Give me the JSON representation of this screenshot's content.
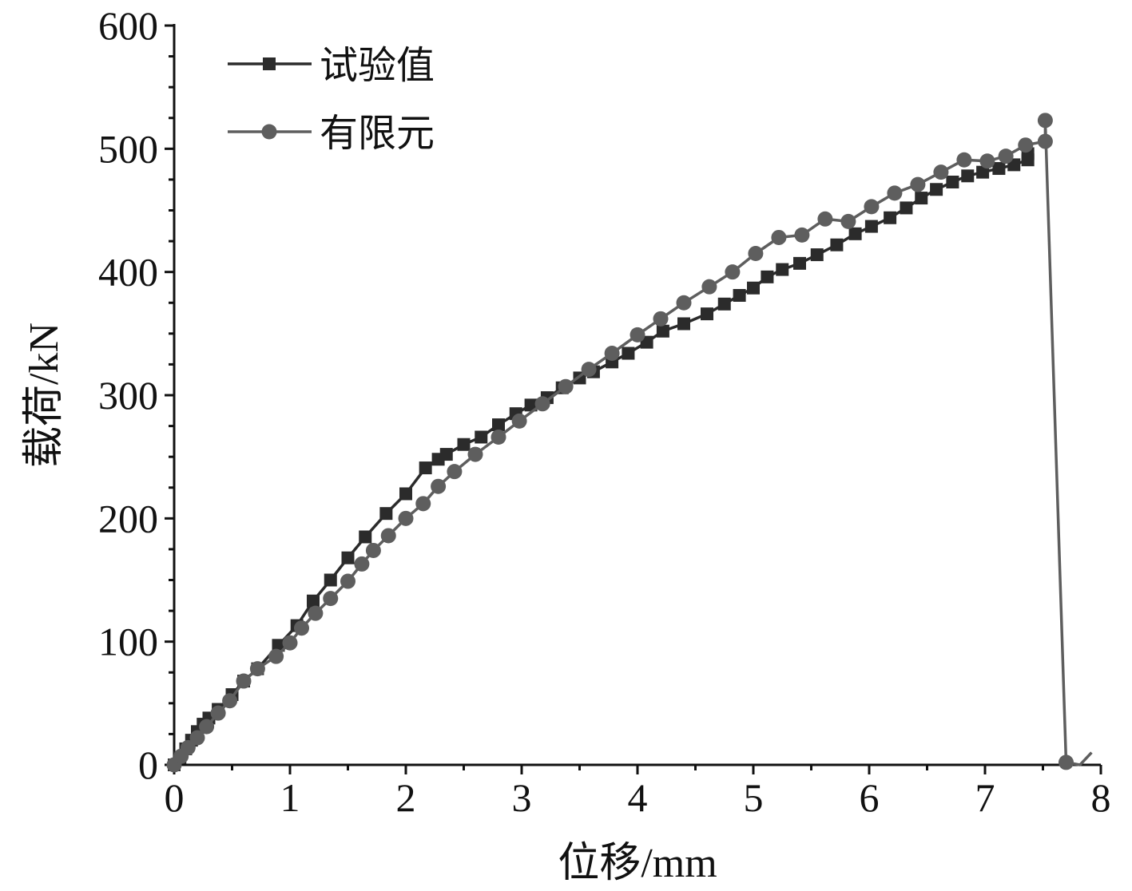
{
  "chart_data": {
    "type": "line",
    "title": "",
    "xlabel": "位移/mm",
    "ylabel": "载荷/kN",
    "xlim": [
      0,
      8
    ],
    "ylim": [
      0,
      600
    ],
    "x_ticks": [
      "0",
      "1",
      "2",
      "3",
      "4",
      "5",
      "6",
      "7",
      "8"
    ],
    "y_ticks": [
      "0",
      "100",
      "200",
      "300",
      "400",
      "500",
      "600"
    ],
    "grid": false,
    "legend_position": "top-left",
    "series": [
      {
        "name": "试验值",
        "marker": "square",
        "color": "#2b2b2b",
        "points": [
          [
            0,
            0
          ],
          [
            0.05,
            6
          ],
          [
            0.1,
            13
          ],
          [
            0.15,
            20
          ],
          [
            0.2,
            27
          ],
          [
            0.25,
            33
          ],
          [
            0.3,
            38
          ],
          [
            0.38,
            45
          ],
          [
            0.5,
            57
          ],
          [
            0.6,
            68
          ],
          [
            0.72,
            78
          ],
          [
            0.9,
            97
          ],
          [
            1.06,
            113
          ],
          [
            1.2,
            133
          ],
          [
            1.35,
            150
          ],
          [
            1.5,
            168
          ],
          [
            1.65,
            185
          ],
          [
            1.83,
            204
          ],
          [
            2.0,
            220
          ],
          [
            2.17,
            241
          ],
          [
            2.28,
            248
          ],
          [
            2.35,
            252
          ],
          [
            2.5,
            260
          ],
          [
            2.65,
            266
          ],
          [
            2.8,
            276
          ],
          [
            2.95,
            285
          ],
          [
            3.08,
            292
          ],
          [
            3.22,
            298
          ],
          [
            3.35,
            306
          ],
          [
            3.5,
            314
          ],
          [
            3.62,
            319
          ],
          [
            3.78,
            327
          ],
          [
            3.92,
            334
          ],
          [
            4.08,
            343
          ],
          [
            4.22,
            352
          ],
          [
            4.4,
            358
          ],
          [
            4.6,
            366
          ],
          [
            4.75,
            374
          ],
          [
            4.88,
            381
          ],
          [
            5.0,
            387
          ],
          [
            5.12,
            396
          ],
          [
            5.25,
            402
          ],
          [
            5.4,
            407
          ],
          [
            5.55,
            414
          ],
          [
            5.72,
            422
          ],
          [
            5.88,
            431
          ],
          [
            6.02,
            437
          ],
          [
            6.18,
            444
          ],
          [
            6.32,
            452
          ],
          [
            6.45,
            460
          ],
          [
            6.58,
            467
          ],
          [
            6.72,
            473
          ],
          [
            6.85,
            478
          ],
          [
            6.98,
            481
          ],
          [
            7.12,
            484
          ],
          [
            7.25,
            487
          ],
          [
            7.37,
            491
          ],
          [
            7.37,
            496
          ]
        ]
      },
      {
        "name": "有限元",
        "marker": "circle",
        "color": "#5e5e5e",
        "points": [
          [
            0,
            0
          ],
          [
            0.06,
            7
          ],
          [
            0.12,
            14
          ],
          [
            0.2,
            22
          ],
          [
            0.28,
            31
          ],
          [
            0.38,
            42
          ],
          [
            0.48,
            52
          ],
          [
            0.6,
            68
          ],
          [
            0.72,
            78
          ],
          [
            0.88,
            88
          ],
          [
            1.0,
            99
          ],
          [
            1.1,
            111
          ],
          [
            1.22,
            123
          ],
          [
            1.35,
            135
          ],
          [
            1.5,
            149
          ],
          [
            1.62,
            163
          ],
          [
            1.72,
            174
          ],
          [
            1.85,
            186
          ],
          [
            2.0,
            200
          ],
          [
            2.15,
            212
          ],
          [
            2.28,
            226
          ],
          [
            2.42,
            238
          ],
          [
            2.6,
            252
          ],
          [
            2.8,
            266
          ],
          [
            2.98,
            279
          ],
          [
            3.18,
            293
          ],
          [
            3.38,
            307
          ],
          [
            3.58,
            321
          ],
          [
            3.78,
            334
          ],
          [
            4.0,
            349
          ],
          [
            4.2,
            362
          ],
          [
            4.4,
            375
          ],
          [
            4.62,
            388
          ],
          [
            4.82,
            400
          ],
          [
            5.02,
            415
          ],
          [
            5.22,
            428
          ],
          [
            5.42,
            430
          ],
          [
            5.62,
            443
          ],
          [
            5.82,
            441
          ],
          [
            6.02,
            453
          ],
          [
            6.22,
            464
          ],
          [
            6.42,
            471
          ],
          [
            6.62,
            481
          ],
          [
            6.82,
            491
          ],
          [
            7.02,
            490
          ],
          [
            7.18,
            494
          ],
          [
            7.35,
            503
          ],
          [
            7.52,
            506
          ],
          [
            7.52,
            523
          ],
          [
            7.7,
            2
          ],
          [
            7.82,
            0
          ],
          [
            7.92,
            10
          ]
        ]
      }
    ]
  }
}
